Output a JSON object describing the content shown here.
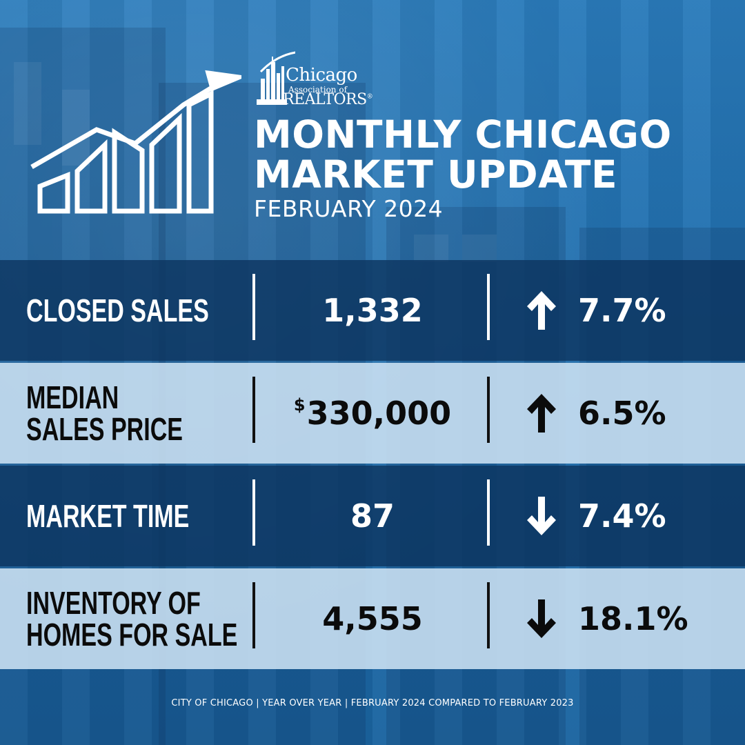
{
  "colors": {
    "background": "#1e6fae",
    "dark_row": "#0c345f",
    "light_row": "#cde2f4",
    "text_light": "#ffffff",
    "text_dark": "#0b0b0b"
  },
  "icons": {
    "header_graphic": "rising-bar-chart-icon",
    "increase": "arrow-up-icon",
    "decrease": "arrow-down-icon"
  },
  "logo": {
    "line1": "Chicago",
    "line2": "Association of",
    "line3": "REALTORS",
    "registered": "®"
  },
  "header": {
    "title_line1": "MONTHLY CHICAGO",
    "title_line2": "MARKET UPDATE",
    "subtitle": "FEBRUARY 2024"
  },
  "stats": [
    {
      "label_line1": "CLOSED SALES",
      "label_line2": "",
      "value": "1,332",
      "currency": "",
      "direction": "up",
      "change": "7.7%"
    },
    {
      "label_line1": "MEDIAN",
      "label_line2": "SALES PRICE",
      "value": "330,000",
      "currency": "$",
      "direction": "up",
      "change": "6.5%"
    },
    {
      "label_line1": "MARKET TIME",
      "label_line2": "",
      "value": "87",
      "currency": "",
      "direction": "down",
      "change": "7.4%"
    },
    {
      "label_line1": "INVENTORY OF",
      "label_line2": "HOMES FOR SALE",
      "value": "4,555",
      "currency": "",
      "direction": "down",
      "change": "18.1%"
    }
  ],
  "footer": "CITY OF CHICAGO | YEAR OVER YEAR | FEBRUARY 2024 COMPARED TO FEBRUARY 2023"
}
